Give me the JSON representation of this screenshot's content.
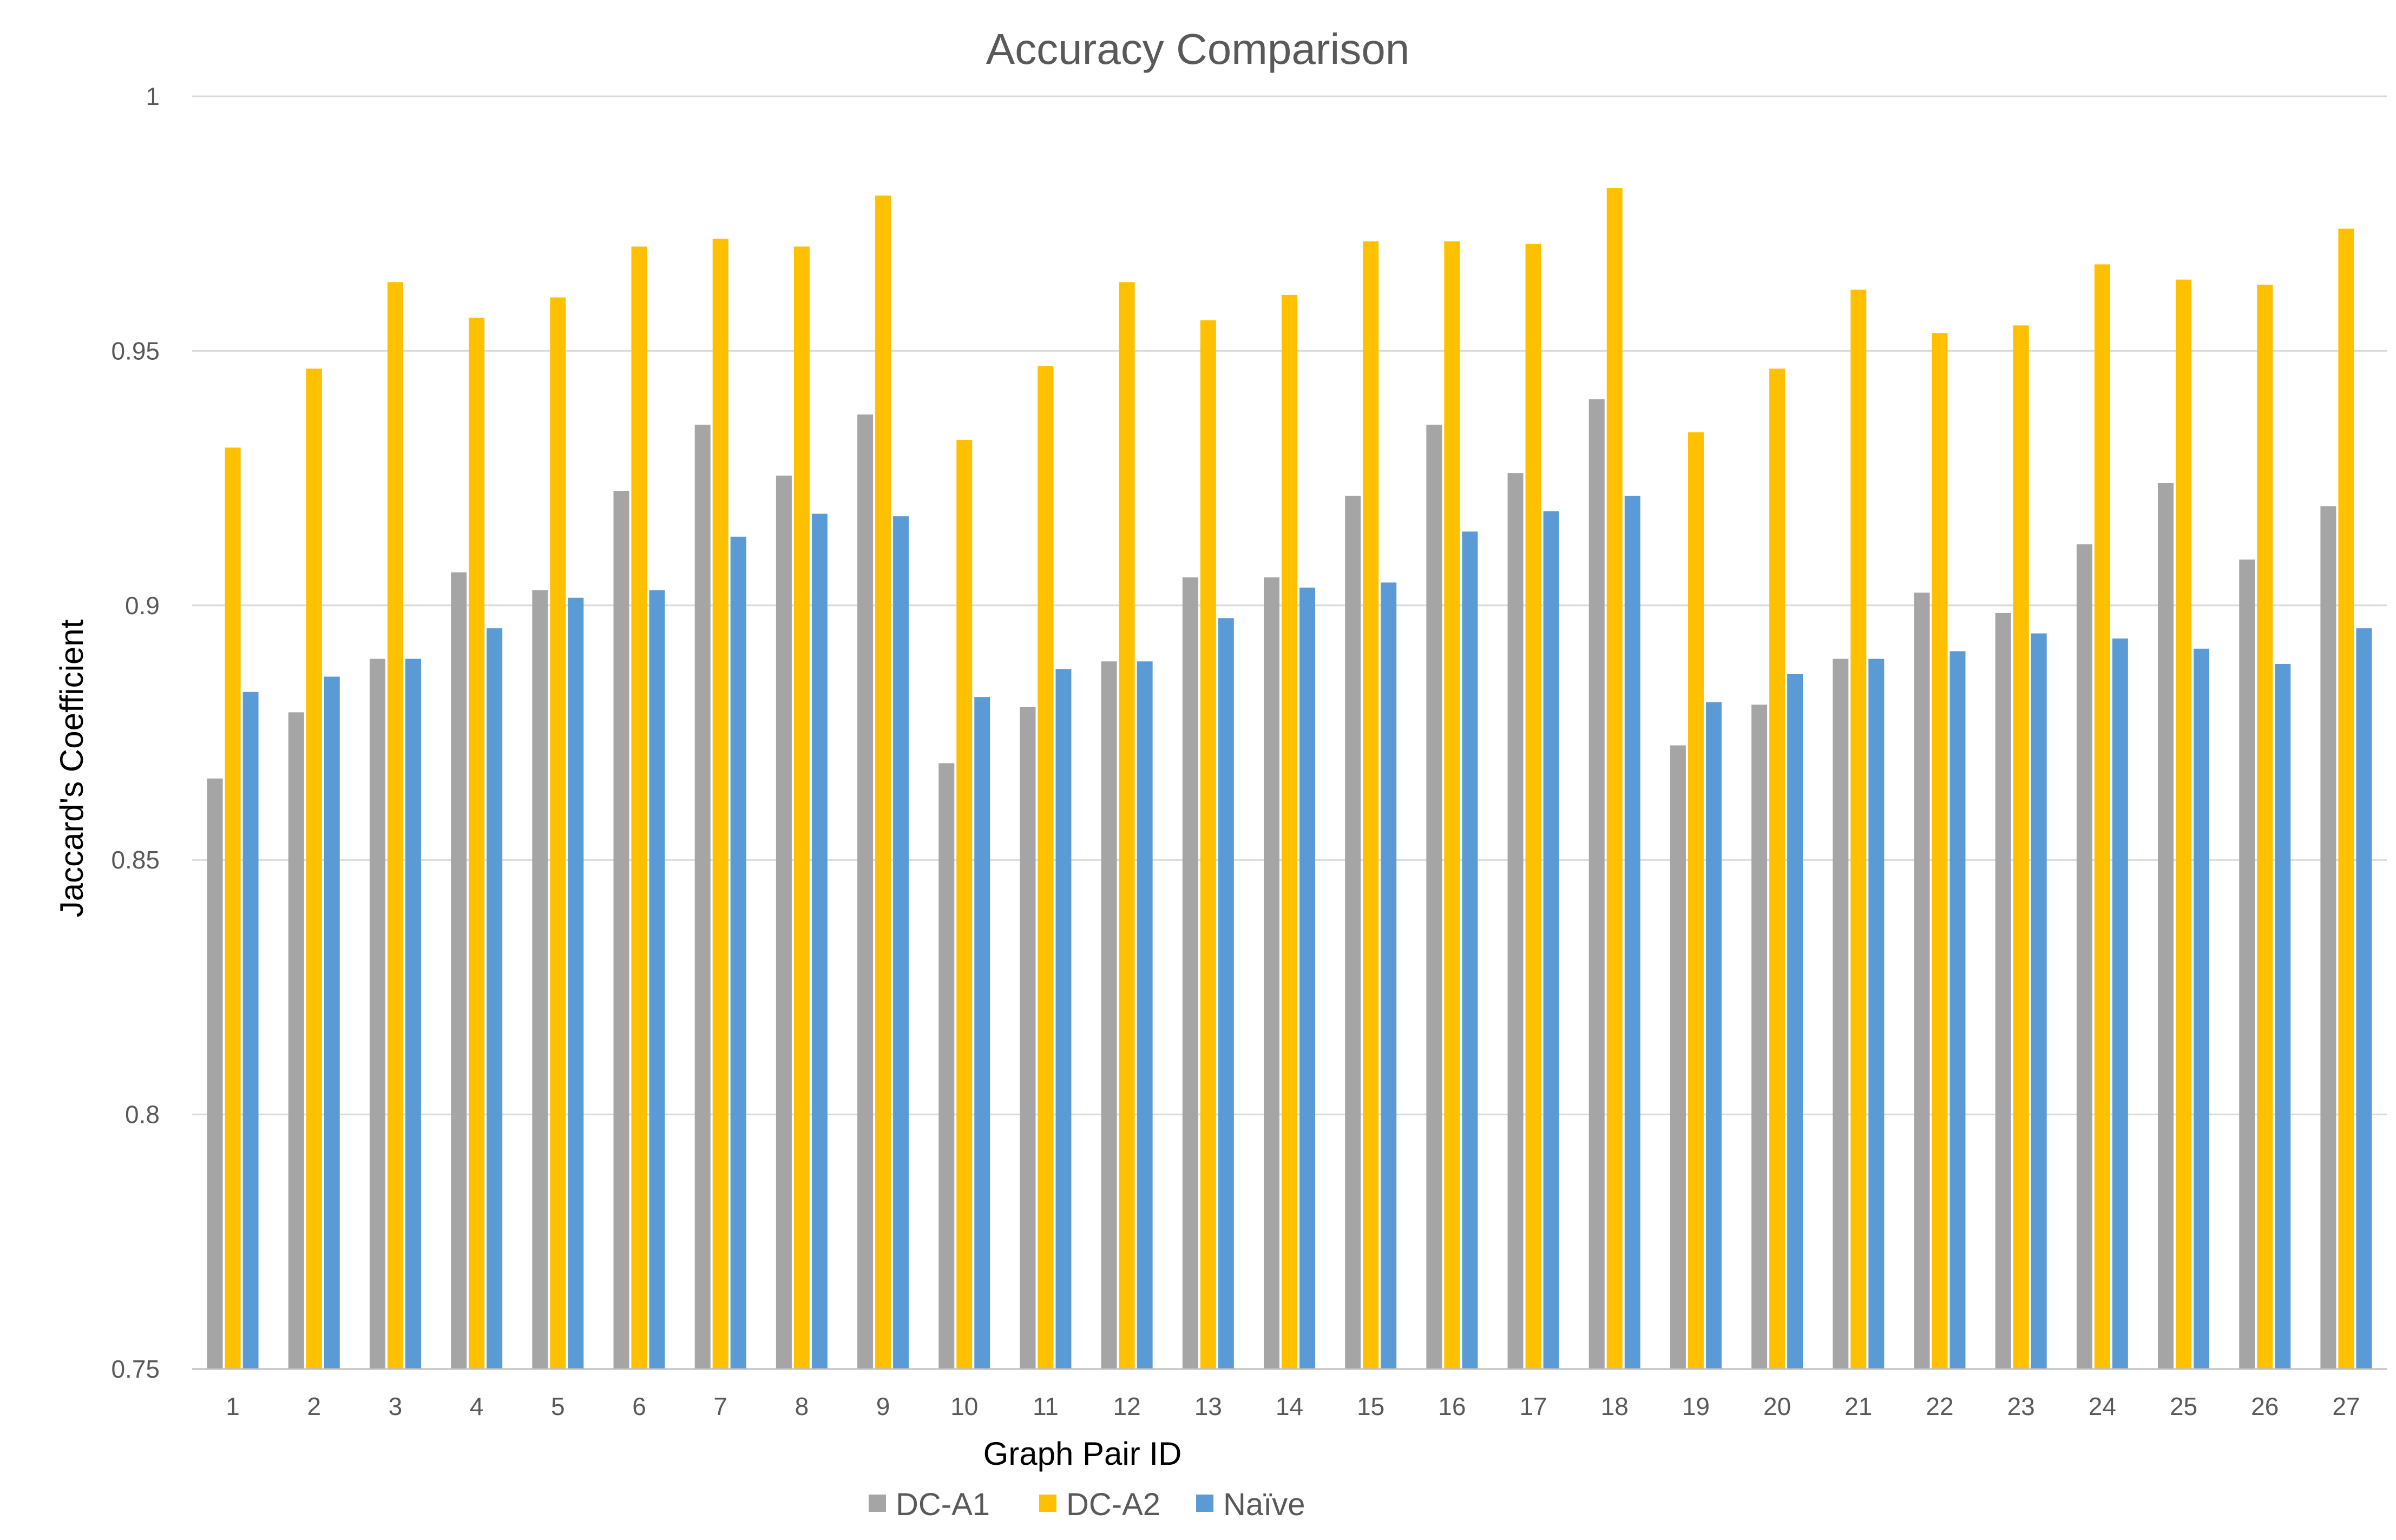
{
  "chart_data": {
    "type": "bar",
    "title": "Accuracy Comparison",
    "xlabel": "Graph Pair ID",
    "ylabel": "Jaccard's Coefficient",
    "ylim": [
      0.75,
      1
    ],
    "yticks": [
      "0.75",
      "0.8",
      "0.85",
      "0.9",
      "0.95",
      "1"
    ],
    "grid": true,
    "legend_position": "bottom",
    "categories": [
      "1",
      "2",
      "3",
      "4",
      "5",
      "6",
      "7",
      "8",
      "9",
      "10",
      "11",
      "12",
      "13",
      "14",
      "15",
      "16",
      "17",
      "18",
      "19",
      "20",
      "21",
      "22",
      "23",
      "24",
      "25",
      "26",
      "27"
    ],
    "series": [
      {
        "name": "DC-A1",
        "color": "#a5a5a5",
        "values": [
          0.866,
          0.879,
          0.8895,
          0.9065,
          0.903,
          0.9225,
          0.9355,
          0.9255,
          0.9375,
          0.869,
          0.88,
          0.889,
          0.9055,
          0.9055,
          0.9215,
          0.9355,
          0.926,
          0.9405,
          0.8725,
          0.8805,
          0.8895,
          0.9025,
          0.8985,
          0.912,
          0.924,
          0.909,
          0.9195
        ]
      },
      {
        "name": "DC-A2",
        "color": "#ffc000",
        "values": [
          0.931,
          0.9465,
          0.9635,
          0.9565,
          0.9605,
          0.9705,
          0.972,
          0.9705,
          0.9805,
          0.9325,
          0.947,
          0.9635,
          0.956,
          0.961,
          0.9715,
          0.9715,
          0.971,
          0.982,
          0.934,
          0.9465,
          0.962,
          0.9535,
          0.955,
          0.967,
          0.964,
          0.963,
          0.974
        ]
      },
      {
        "name": "Naïve",
        "color": "#5b9bd5",
        "values": [
          0.883,
          0.886,
          0.8895,
          0.8955,
          0.9015,
          0.903,
          0.9135,
          0.918,
          0.9175,
          0.882,
          0.8875,
          0.889,
          0.8975,
          0.9035,
          0.9045,
          0.9145,
          0.9185,
          0.9215,
          0.881,
          0.8865,
          0.8895,
          0.891,
          0.8945,
          0.8935,
          0.8915,
          0.8885,
          0.8955
        ]
      }
    ]
  }
}
